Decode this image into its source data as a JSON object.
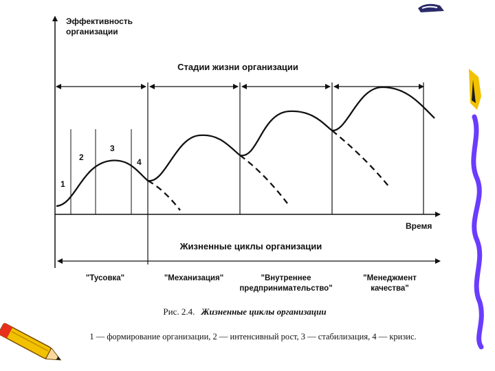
{
  "diagram": {
    "y_axis_label_line1": "Эффективность",
    "y_axis_label_line2": "организации",
    "x_axis_label": "Время",
    "stages_header": "Стадии жизни организации",
    "cycles_header": "Жизненные циклы организации",
    "phase_numbers": [
      "1",
      "2",
      "3",
      "4"
    ],
    "stages": [
      {
        "line1": "\"Тусовка\"",
        "line2": ""
      },
      {
        "line1": "\"Механизация\"",
        "line2": ""
      },
      {
        "line1": "\"Внутреннее",
        "line2": "предпринимательство\""
      },
      {
        "line1": "\"Менеджмент",
        "line2": "качества\""
      }
    ]
  },
  "caption": {
    "title_prefix": "Рис. 2.4.",
    "title_main": "Жизненные циклы организации",
    "legend": "1 — формирование организации, 2 — интенсивный рост, 3 — стабилизация, 4 — кризис."
  },
  "colors": {
    "ink": "#111111",
    "pencil_body": "#f2c200",
    "pencil_tip": "#e8301c",
    "ribbon": "#6a3cff"
  },
  "icons": [
    "pencil-icon",
    "paint-tube-icon",
    "ribbon-decoration-icon"
  ]
}
